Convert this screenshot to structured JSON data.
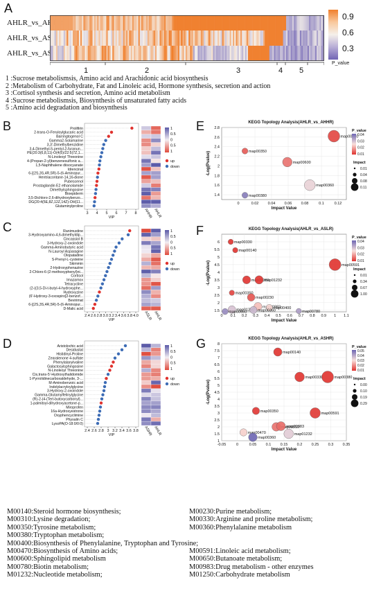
{
  "panel_a": {
    "letter": "A",
    "rows": [
      "AHLR_vs_AHHR",
      "AHLR_vs_ASLR",
      "AHLR_vs_ASHR"
    ],
    "cluster_numbers": [
      "1",
      "2",
      "3",
      "4",
      "5"
    ],
    "colorbar_ticks": [
      "0.9",
      "0.6",
      "0.3"
    ],
    "colorbar_label": "P_value",
    "colors": {
      "high": "#f07f2c",
      "mid": "#f5f0ea",
      "low": "#7064b4"
    },
    "legend": [
      "1 :Sucrose metabolismsis, Amino acid and Arachidonic acid biosynthesis",
      "2 :Metabolism of Carbohydrate, Fat and Linoleic acid, Hormone synthesis, secretion and action",
      "3 :Cortisol synthesis and secretion, Amino acid metabolism",
      "4 :Sucrose metabolismsis, Biosynthesis of unsaturated fatty acids",
      "5 :Amino acid degradation and biosynthesis"
    ]
  },
  "panel_b": {
    "letter": "B",
    "chart_data": {
      "type": "scatter",
      "metabolites": [
        "Prolifirin",
        "2-trans-O-Feruloylglucaric acid",
        "Barringtogenol C",
        "Gamma2-Solamarine",
        "3,3'-Dimethylbenzidine",
        "3,4-Dimethyl-5-pentyl-2-furanun...",
        "PE(20:3(6,8,11)-O(4(5)/22:5(7Z,1...",
        "N-Linoleoyl Threonine",
        "4-(Propan-2-yl)benzenesulfonic a...",
        "1,5-Naphthalene diisocyanate",
        "Idrencinal",
        "6-[(2S,3S,4R,5R)-5-(6-Aminopur...",
        "Hentriacontane-14,16-dione",
        "Pubescenol",
        "Prostaglandin E2 ethanolamide",
        "Dimethylsphingosine",
        "Bioepiderm",
        "3,5-Dichloro-2,6-dihydroxybenzo...",
        "DG(20:4(5E,8Z,12Z,14Z)-OH(11...",
        "Glutaminylproline"
      ],
      "vip": [
        7.6,
        5.5,
        5.2,
        4.9,
        4.7,
        4.6,
        4.5,
        4.4,
        4.3,
        4.25,
        4.2,
        4.1,
        4.05,
        4.0,
        3.95,
        3.9,
        3.85,
        3.8,
        3.75,
        3.7
      ],
      "direction": [
        "up",
        "up",
        "up",
        "down",
        "down",
        "down",
        "down",
        "down",
        "down",
        "down",
        "up",
        "up",
        "down",
        "up",
        "up",
        "down",
        "down",
        "up",
        "down",
        "down"
      ],
      "xlabel": "VIP",
      "xticks": [
        "3",
        "4",
        "5",
        "6",
        "7",
        "8"
      ],
      "xlim": [
        3,
        8
      ],
      "heatmap_columns": [
        "AHHR",
        "AHLR"
      ],
      "legend": {
        "scale": [
          "1",
          "0.5",
          "0",
          "0.5",
          "1"
        ],
        "up": "up",
        "down": "down"
      }
    }
  },
  "panel_c": {
    "letter": "C",
    "chart_data": {
      "type": "scatter",
      "metabolites": [
        "Ranimustine",
        "3-Hydroxyamino-4,6-dimethyldip...",
        "Cincassiol B",
        "3-Hydroxy-2-oxoindole",
        "Gamma-Aminobutyric acid",
        "N-Lauroyl Asparagine",
        "Olopatadine",
        "S-Prenyl-L-cysteine",
        "Skimmin",
        "2-Hydroxyphenazine",
        "2-Chloro-6-(2-methoxyphenyl)ni...",
        "Cortisol",
        "Imazamox",
        "Tetracycline",
        "(2-((3,5-Di-t-butyl-4-hydroxyphe...",
        "Hydroxyzine",
        "(6'-Hydroxy-3-oxospiro[2-benzof...",
        "Bevirimat",
        "6-[(2S,3S,4R,5R)-5-(6-Aminopur...",
        "D-Malic acid"
      ],
      "vip": [
        3.8,
        3.75,
        3.55,
        3.45,
        3.35,
        3.3,
        3.25,
        3.2,
        3.15,
        3.1,
        3.05,
        3.0,
        2.95,
        2.9,
        2.85,
        2.8,
        2.75,
        2.7,
        2.65,
        2.6
      ],
      "direction": [
        "up",
        "down",
        "down",
        "down",
        "down",
        "down",
        "down",
        "down",
        "down",
        "down",
        "down",
        "down",
        "down",
        "down",
        "down",
        "up",
        "down",
        "down",
        "up",
        "up"
      ],
      "xlabel": "VIP",
      "xticks": [
        "2.4",
        "2.6",
        "2.8",
        "3.0",
        "3.2",
        "3.4",
        "3.6",
        "3.8",
        "4.0"
      ],
      "xlim": [
        2.4,
        4.0
      ],
      "heatmap_columns": [
        "ASLR",
        "AHLR"
      ],
      "legend": {
        "scale": [
          "1",
          "0.5",
          "0",
          "0.5",
          "1"
        ],
        "up": "up",
        "down": "down"
      }
    }
  },
  "panel_d": {
    "letter": "D",
    "chart_data": {
      "type": "scatter",
      "metabolites": [
        "Aristolochic acid",
        "Desidustat",
        "Histidinyl-Proline",
        "Zearalenone 4-sulfate",
        "Phenylalanylvaline",
        "Galactosylsphingosine",
        "N-Linoleoyl Threonine",
        "Cis,trans-5'-Hydroxythalidomide",
        "1-Pyrrolidinecarboxaldehyde, 3-...",
        "M-Aminobenzoic acid",
        "Indolylacryloylglycine",
        "3-Hydroxy-2-oxoindole",
        "Gamma-Glutamylfelinylglycine",
        "(R)-2-(4-(Tert-butoxycarbonyl)...",
        "1-palmitoyl-dihydroxyacetone-p...",
        "Miroprofen",
        "16a-Hydroxyestrone",
        "Oxyphencyclimine",
        "Physalin C",
        "LysoPA(O-18:0/0:0)"
      ],
      "vip": [
        3.5,
        3.4,
        3.3,
        3.2,
        3.15,
        3.1,
        3.05,
        3.0,
        2.95,
        2.92,
        2.9,
        2.88,
        2.85,
        2.82,
        2.8,
        2.78,
        2.76,
        2.74,
        2.72,
        2.7
      ],
      "direction": [
        "down",
        "down",
        "down",
        "down",
        "up",
        "up",
        "up",
        "down",
        "up",
        "down",
        "down",
        "down",
        "down",
        "down",
        "up",
        "down",
        "down",
        "down",
        "down",
        "down"
      ],
      "xlabel": "VIP",
      "xticks": [
        "2.4",
        "2.6",
        "2.8",
        "3",
        "3.2",
        "3.4",
        "3.6",
        "3.8"
      ],
      "xlim": [
        2.4,
        3.8
      ],
      "heatmap_columns": [
        "ASHR",
        "AHLR"
      ],
      "legend": {
        "scale": [
          "1",
          "0.5",
          "0",
          "0.5",
          "1"
        ],
        "up": "up",
        "down": "down"
      }
    }
  },
  "panel_e": {
    "letter": "E",
    "chart_data": {
      "type": "scatter",
      "title": "KEGG Topology Analysis(AHLR_vs_AHHR)",
      "xlabel": "Impact Value",
      "ylabel": "-Log(Pvalue)",
      "xlim": [
        -0.02,
        0.13
      ],
      "ylim": [
        1.3,
        2.8
      ],
      "xticks": [
        "0",
        "0.02",
        "0.04",
        "0.06",
        "0.08",
        "0.1",
        "0.12"
      ],
      "yticks": [
        "1.4",
        "1.6",
        "1.8",
        "2",
        "2.2",
        "2.4",
        "2.6",
        "2.8"
      ],
      "points": [
        {
          "label": "map00310",
          "x": 0.115,
          "y": 2.62,
          "p": 0.0024,
          "impact": 0.11
        },
        {
          "label": "map00350",
          "x": 0.008,
          "y": 2.31,
          "p": 0.005,
          "impact": 0.01
        },
        {
          "label": "map00600",
          "x": 0.059,
          "y": 2.08,
          "p": 0.0083,
          "impact": 0.06
        },
        {
          "label": "map00360",
          "x": 0.086,
          "y": 1.6,
          "p": 0.025,
          "impact": 0.09
        },
        {
          "label": "map00380",
          "x": 0.008,
          "y": 1.39,
          "p": 0.041,
          "impact": 0.01
        }
      ],
      "colorbar_title": "P_value",
      "colorbar_ticks": [
        "0.04",
        "0.03",
        "0.02",
        "0.01"
      ],
      "impact_title": "Impact",
      "impact_ticks": [
        "0.01",
        "0.04",
        "0.08",
        "0.11"
      ]
    }
  },
  "panel_f": {
    "letter": "F",
    "chart_data": {
      "type": "scatter",
      "title": "KEGG Topology Analysis(AHLR_vs_ASLR)",
      "xlabel": "Impact Value",
      "ylabel": "-Log(Pvalue)",
      "xlim": [
        0,
        1.1
      ],
      "ylim": [
        1.4,
        6.5
      ],
      "xticks": [
        "0",
        "0.1",
        "0.2",
        "0.3",
        "0.4",
        "0.5",
        "0.6",
        "0.7",
        "0.8",
        "0.9",
        "1",
        "1.1"
      ],
      "yticks": [
        "1.5",
        "2",
        "2.5",
        "3",
        "3.5",
        "4",
        "4.5",
        "5",
        "5.5",
        "6"
      ],
      "points": [
        {
          "label": "map00330",
          "x": 0.08,
          "y": 6.0,
          "p": 1e-06,
          "impact": 0.05
        },
        {
          "label": "map00140",
          "x": 0.12,
          "y": 5.45,
          "p": 3.5e-06,
          "impact": 0.05
        },
        {
          "label": "map00591",
          "x": 1.0,
          "y": 4.5,
          "p": 3e-05,
          "impact": 1.0
        },
        {
          "label": "map00380",
          "x": 0.22,
          "y": 3.5,
          "p": 0.0003,
          "impact": 0.3
        },
        {
          "label": "map01232",
          "x": 0.33,
          "y": 3.5,
          "p": 0.0003,
          "impact": 0.35
        },
        {
          "label": "map00350",
          "x": 0.09,
          "y": 2.65,
          "p": 0.0022,
          "impact": 0.05
        },
        {
          "label": "map00230",
          "x": 0.26,
          "y": 2.35,
          "p": 0.0045,
          "impact": 0.25
        },
        {
          "label": "map00983",
          "x": 0.32,
          "y": 1.75,
          "p": 0.018,
          "impact": 0.3
        },
        {
          "label": "map00400",
          "x": 0.42,
          "y": 1.68,
          "p": 0.021,
          "impact": 0.12
        },
        {
          "label": "map01250",
          "x": 0.09,
          "y": 1.55,
          "p": 0.028,
          "impact": 0.25
        },
        {
          "label": "map00360",
          "x": 0.28,
          "y": 1.52,
          "p": 0.03,
          "impact": 0.2
        },
        {
          "label": "map00650",
          "x": 0.03,
          "y": 1.42,
          "p": 0.038,
          "impact": 0.1
        },
        {
          "label": "map00780",
          "x": 0.68,
          "y": 1.45,
          "p": 0.035,
          "impact": 0.05
        }
      ],
      "colorbar_title": "P_value",
      "colorbar_ticks": [
        "0.04",
        "0.03",
        "0.02",
        "0.01"
      ],
      "impact_title": "Impact",
      "impact_ticks": [
        "0.01",
        "0.34",
        "0.67",
        "1.00"
      ]
    }
  },
  "panel_g": {
    "letter": "G",
    "chart_data": {
      "type": "scatter",
      "title": "KEGG Topology Analysis(AHLR_vs_ASHR)",
      "xlabel": "Impact Value",
      "ylabel": "-Log(Pvalue)",
      "xlim": [
        -0.05,
        0.35
      ],
      "ylim": [
        1,
        8
      ],
      "xticks": [
        "-0.05",
        "0",
        "0.05",
        "0.1",
        "0.15",
        "0.2",
        "0.25",
        "0.3",
        "0.35"
      ],
      "yticks": [
        "1",
        "1.5",
        "2",
        "2.5",
        "3",
        "3.5",
        "4",
        "4.5",
        "5",
        "5.5",
        "6",
        "6.5",
        "7",
        "7.5",
        "8"
      ],
      "points": [
        {
          "label": "map00140",
          "x": 0.13,
          "y": 7.4,
          "p": 4e-08,
          "impact": 0.09
        },
        {
          "label": "map00330",
          "x": 0.2,
          "y": 5.6,
          "p": 2.5e-06,
          "impact": 0.15
        },
        {
          "label": "map00380",
          "x": 0.29,
          "y": 5.6,
          "p": 2.5e-06,
          "impact": 0.29
        },
        {
          "label": "map00350",
          "x": 0.06,
          "y": 3.15,
          "p": 0.0007,
          "impact": 0.05
        },
        {
          "label": "map00591",
          "x": 0.25,
          "y": 3.0,
          "p": 0.001,
          "impact": 0.2
        },
        {
          "label": "map00310",
          "x": 0.125,
          "y": 2.0,
          "p": 0.01,
          "impact": 0.1
        },
        {
          "label": "map00983",
          "x": 0.14,
          "y": 2.05,
          "p": 0.009,
          "impact": 0.12
        },
        {
          "label": "map00470",
          "x": 0.02,
          "y": 1.6,
          "p": 0.025,
          "impact": 0.05
        },
        {
          "label": "map01232",
          "x": 0.165,
          "y": 1.5,
          "p": 0.032,
          "impact": 0.15
        },
        {
          "label": "map00360",
          "x": 0.05,
          "y": 1.25,
          "p": 0.056,
          "impact": 0.1
        }
      ],
      "colorbar_title": "P_value",
      "colorbar_ticks": [
        "0.05",
        "0.04",
        "0.03",
        "0.02",
        "0.01"
      ],
      "impact_title": "Impact",
      "impact_ticks": [
        "0.00",
        "0.10",
        "0.19",
        "0.29"
      ]
    }
  },
  "map_legend": [
    [
      "M00140:Steroid hormone biosynthesis;",
      "M00230:Purine metabolism;"
    ],
    [
      "M00310:Lysine degradation;",
      "M00330:Arginine and proline metabolism;"
    ],
    [
      "M00350:Tyrosine metabolism;",
      "M00360:Phenylalanine metabolism"
    ],
    [
      "M00380:Tryptophan metabolism;",
      ""
    ],
    [
      "M00400:Biosynthesis of Phenylalanine, Tryptophan and Tyrosine;",
      ""
    ],
    [
      "M00470:Biosynthesis of Amino acids;",
      "M00591:Linoleic acid metabolism;"
    ],
    [
      "M00600:Sphingolipid metabolism",
      "M00650:Butanoate metabolism;"
    ],
    [
      "M00780:Biotin metabolism;",
      "M00983:Drug metabolism - other enzymes"
    ],
    [
      "M01232:Nucleotide metabolism;",
      "M01250:Carbohydrate metabolism"
    ]
  ]
}
